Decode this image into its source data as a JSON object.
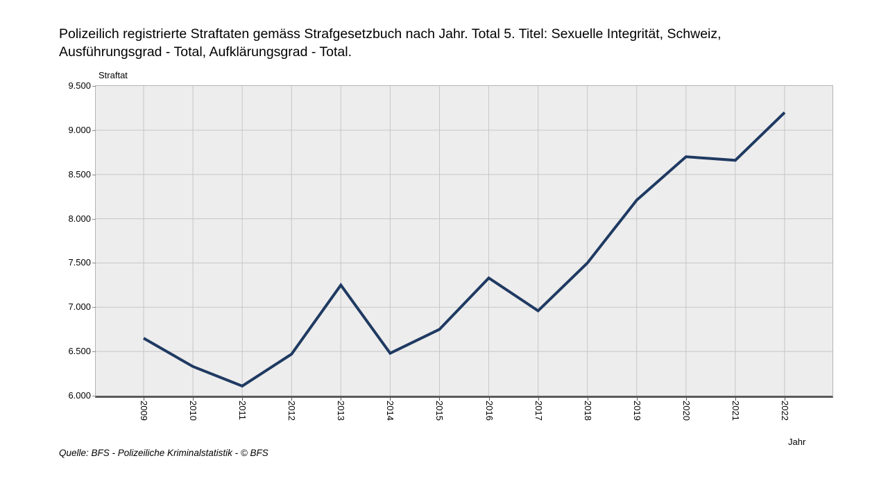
{
  "page": {
    "title": "Polizeilich registrierte Straftaten gemäss Strafgesetzbuch nach Jahr. Total 5. Titel: Sexuelle Integrität, Schweiz, Ausführungsgrad - Total, Aufklärungsgrad - Total.",
    "source_note": "Quelle: BFS - Polizeiliche Kriminalstatistik - © BFS"
  },
  "chart_data": {
    "type": "line",
    "title": "Polizeilich registrierte Straftaten gemäss Strafgesetzbuch nach Jahr. Total 5. Titel: Sexuelle Integrität, Schweiz, Ausführungsgrad - Total, Aufklärungsgrad - Total.",
    "xlabel": "Jahr",
    "ylabel": "Straftat",
    "categories": [
      "2009",
      "2010",
      "2011",
      "2012",
      "2013",
      "2014",
      "2015",
      "2016",
      "2017",
      "2018",
      "2019",
      "2020",
      "2021",
      "2022"
    ],
    "values": [
      6650,
      6330,
      6110,
      6470,
      7250,
      6480,
      6750,
      7330,
      6960,
      7500,
      8210,
      8700,
      8660,
      9200
    ],
    "series_name": "Straftaten 5. Titel: Sexuelle Integrität",
    "ylim": [
      6000,
      9500
    ],
    "ytick_step": 500,
    "ytick_labels": [
      "6.000",
      "6.500",
      "7.000",
      "7.500",
      "8.000",
      "8.500",
      "9.000",
      "9.500"
    ],
    "grid": true,
    "legend": "none",
    "colors": {
      "line": "#1f3a62",
      "plot_background": "#ededed",
      "gridline": "#c6c6c6",
      "axis": "#5a5a5a",
      "border": "#b4b4b4",
      "text": "#000000"
    }
  }
}
